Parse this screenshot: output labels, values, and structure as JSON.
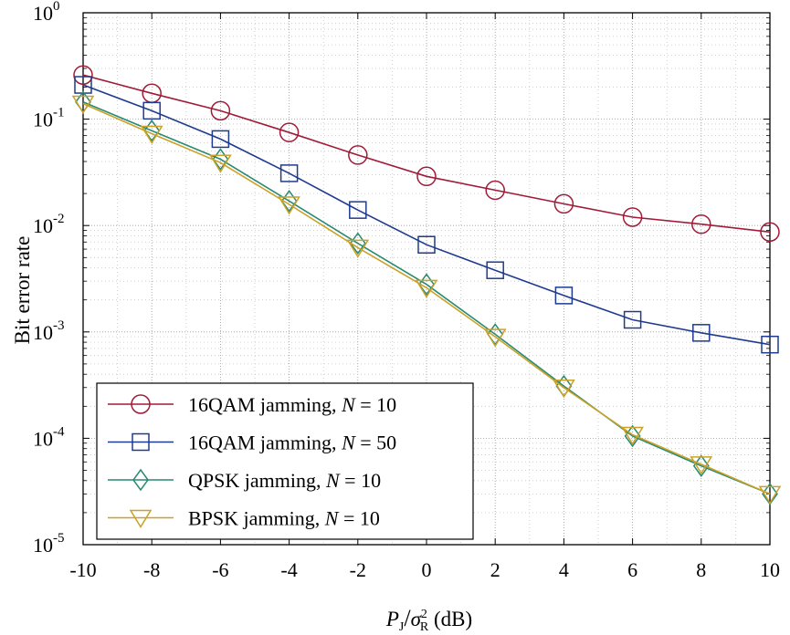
{
  "chart_data": {
    "type": "line",
    "title": "",
    "xlabel": {
      "p": "P",
      "p_sub": "J",
      "slash": "/",
      "sigma": "σ",
      "sigma_sub": "R",
      "sigma_sup": "2",
      "unit": " (dB)"
    },
    "ylabel": "Bit error rate",
    "xlim": [
      -10,
      10
    ],
    "ylim": [
      1e-05,
      1
    ],
    "yscale": "log",
    "grid": true,
    "legend_position": "bottom-left",
    "x_ticks": [
      "-10",
      "-8",
      "-6",
      "-4",
      "-2",
      "0",
      "2",
      "4",
      "6",
      "8",
      "10"
    ],
    "y_ticks": [
      {
        "base": "10",
        "exp": "-5"
      },
      {
        "base": "10",
        "exp": "-4"
      },
      {
        "base": "10",
        "exp": "-3"
      },
      {
        "base": "10",
        "exp": "-2"
      },
      {
        "base": "10",
        "exp": "-1"
      },
      {
        "base": "10",
        "exp": "0"
      }
    ],
    "x": [
      -10,
      -8,
      -6,
      -4,
      -2,
      0,
      2,
      4,
      6,
      8,
      10
    ],
    "series": [
      {
        "name": "16QAM jamming, ",
        "name_var": "N",
        "name_eq": " = 10",
        "marker": "circle",
        "color": "#a01b37",
        "values": [
          0.26,
          0.175,
          0.12,
          0.075,
          0.046,
          0.029,
          0.0215,
          0.016,
          0.012,
          0.0103,
          0.0087
        ]
      },
      {
        "name": "16QAM jamming, ",
        "name_var": "N",
        "name_eq": " = 50",
        "marker": "square",
        "color": "#1f3b8f",
        "values": [
          0.21,
          0.12,
          0.065,
          0.031,
          0.014,
          0.0066,
          0.0038,
          0.0022,
          0.0013,
          0.00098,
          0.00076
        ]
      },
      {
        "name": "QPSK jamming, ",
        "name_var": "N",
        "name_eq": " = 10",
        "marker": "diamond",
        "color": "#2a8a72",
        "values": [
          0.145,
          0.078,
          0.042,
          0.017,
          0.0068,
          0.0028,
          0.00095,
          0.00031,
          0.000105,
          5.5e-05,
          3e-05
        ]
      },
      {
        "name": "BPSK jamming, ",
        "name_var": "N",
        "name_eq": " = 10",
        "marker": "triangle-down",
        "color": "#c9a227",
        "values": [
          0.14,
          0.073,
          0.039,
          0.0158,
          0.0062,
          0.0026,
          0.0009,
          0.0003,
          0.000108,
          5.7e-05,
          3e-05
        ]
      }
    ]
  }
}
